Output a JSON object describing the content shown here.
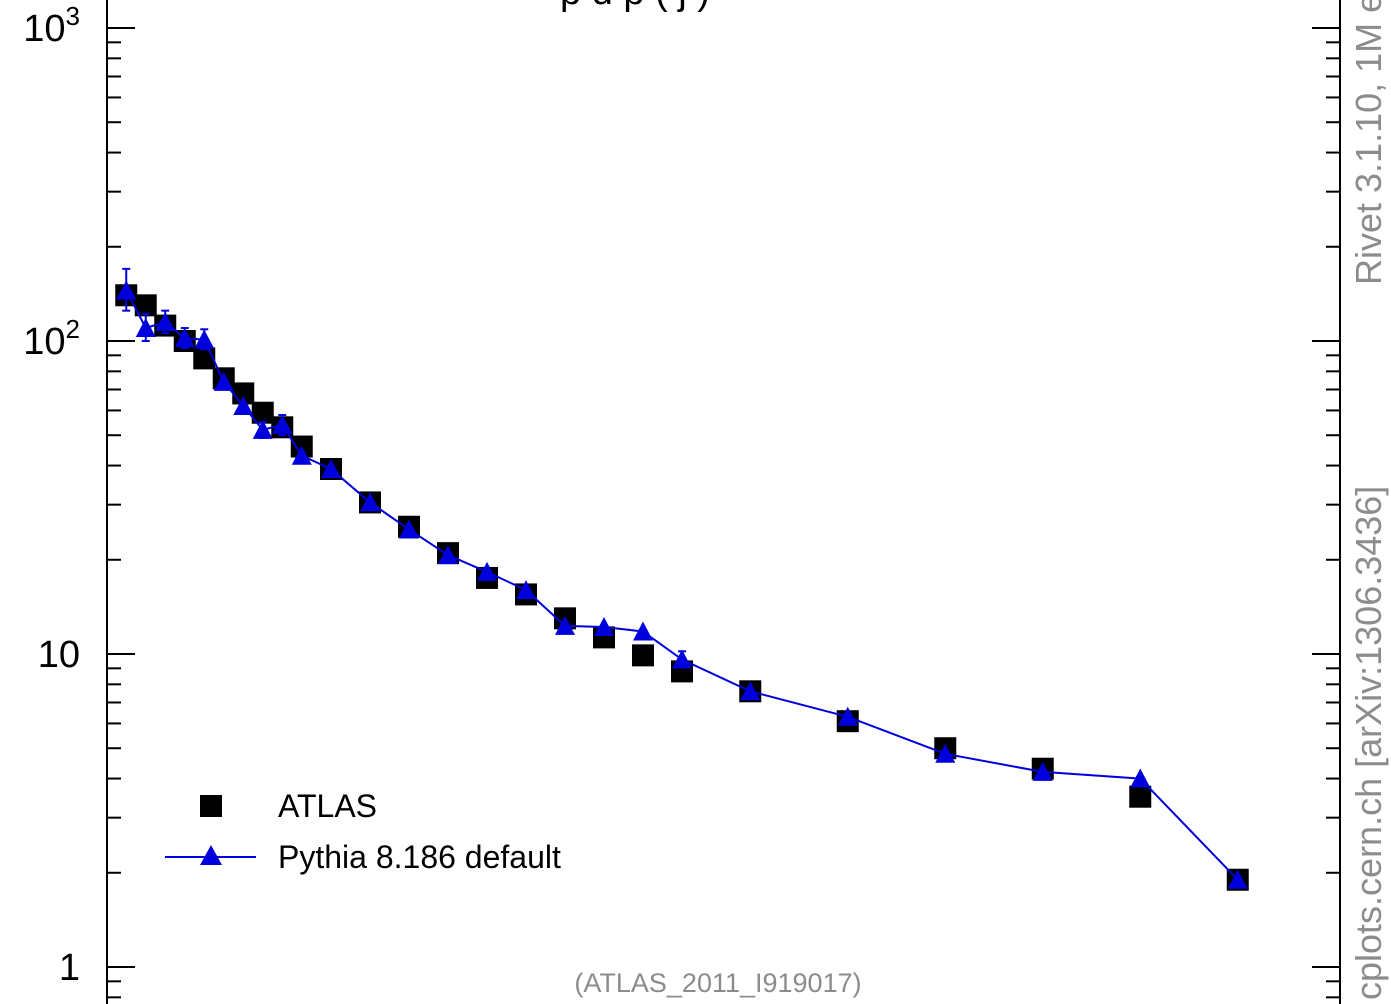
{
  "chart_data": {
    "type": "scatter",
    "title": "",
    "xlabel": "",
    "ylabel": "",
    "y_scale": "log",
    "ylim": [
      0.9,
      1000
    ],
    "xlim": [
      0,
      60
    ],
    "y_tick_labels": [
      {
        "value": 1000,
        "base": "10",
        "exp": "3"
      },
      {
        "value": 100,
        "base": "10",
        "exp": "2"
      },
      {
        "value": 10,
        "base": "10",
        "exp": ""
      },
      {
        "value": 1,
        "base": "1",
        "exp": ""
      }
    ],
    "legend": {
      "placement": "bottom-left"
    },
    "series": [
      {
        "name": "ATLAS",
        "marker": "square",
        "color": "#000000",
        "line": false,
        "points": [
          [
            1.5,
            140
          ],
          [
            2.5,
            130
          ],
          [
            3.5,
            112
          ],
          [
            4.5,
            100
          ],
          [
            5.5,
            88
          ],
          [
            6.5,
            76
          ],
          [
            7.5,
            68
          ],
          [
            8.5,
            59
          ],
          [
            9.5,
            53
          ],
          [
            10.5,
            46
          ],
          [
            12,
            39
          ],
          [
            14,
            30.5
          ],
          [
            16,
            25.5
          ],
          [
            18,
            21
          ],
          [
            20,
            17.5
          ],
          [
            22,
            15.5
          ],
          [
            24,
            13
          ],
          [
            26,
            11.3
          ],
          [
            28,
            9.9
          ],
          [
            30,
            8.8
          ],
          [
            33.5,
            7.6
          ],
          [
            38.5,
            6.1
          ],
          [
            43.5,
            5
          ],
          [
            48.5,
            4.3
          ],
          [
            53.5,
            3.5
          ],
          [
            58.5,
            1.9
          ]
        ]
      },
      {
        "name": "Pythia 8.186 default",
        "marker": "triangle",
        "color": "#0000dd",
        "line": true,
        "points": [
          [
            1.5,
            145
          ],
          [
            2.5,
            110
          ],
          [
            3.5,
            115
          ],
          [
            4.5,
            102
          ],
          [
            5.5,
            101
          ],
          [
            6.5,
            74
          ],
          [
            7.5,
            62
          ],
          [
            8.5,
            52
          ],
          [
            9.5,
            54
          ],
          [
            10.5,
            43
          ],
          [
            12,
            39
          ],
          [
            14,
            30.5
          ],
          [
            16,
            25
          ],
          [
            18,
            20.7
          ],
          [
            20,
            18.3
          ],
          [
            22,
            16
          ],
          [
            24,
            12.3
          ],
          [
            26,
            12.2
          ],
          [
            28,
            11.8
          ],
          [
            30,
            9.6
          ],
          [
            33.5,
            7.6
          ],
          [
            38.5,
            6.3
          ],
          [
            43.5,
            4.8
          ],
          [
            48.5,
            4.2
          ],
          [
            53.5,
            4
          ],
          [
            58.5,
            1.9
          ]
        ],
        "errors": [
          [
            1.5,
            125,
            170
          ],
          [
            2.5,
            100,
            122
          ],
          [
            3.5,
            106,
            125
          ],
          [
            4.5,
            95,
            110
          ],
          [
            5.5,
            94,
            109
          ],
          [
            8.5,
            49,
            55
          ],
          [
            9.5,
            50,
            58
          ],
          [
            30,
            9.1,
            10.2
          ]
        ]
      }
    ],
    "annotations": {
      "analysis": "(ATLAS_2011_I919017)",
      "side_top": "Rivet 3.1.10,  1M e",
      "side_bottom": "cplots.cern.ch [arXiv:1306.3436]",
      "title_fragment": "p  d  p  (   j  )"
    }
  }
}
